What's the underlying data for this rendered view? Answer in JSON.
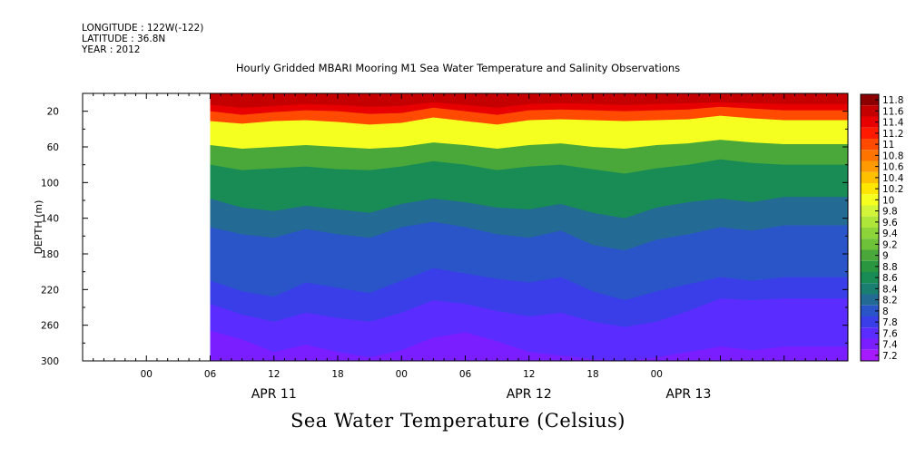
{
  "header": {
    "longitude": "LONGITUDE : 122W(-122)",
    "latitude": "LATITUDE : 36.8N",
    "year": "YEAR : 2012"
  },
  "chart_data": {
    "type": "heatmap",
    "title": "Hourly Gridded MBARI Mooring M1 Sea Water Temperature and Salinity Observations",
    "caption": "Sea Water Temperature (Celsius)",
    "ylabel": "DEPTH (m)",
    "ylim": [
      0,
      300
    ],
    "y_ticks": [
      20,
      60,
      100,
      140,
      180,
      220,
      260,
      300
    ],
    "x_hours_range": [
      -6,
      66
    ],
    "data_start_hour": 6,
    "x_ticks": [
      {
        "hour": 0,
        "label": "00"
      },
      {
        "hour": 6,
        "label": "06"
      },
      {
        "hour": 12,
        "label": "12"
      },
      {
        "hour": 18,
        "label": "18"
      },
      {
        "hour": 24,
        "label": "00"
      },
      {
        "hour": 30,
        "label": "06"
      },
      {
        "hour": 36,
        "label": "12"
      },
      {
        "hour": 42,
        "label": "18"
      },
      {
        "hour": 48,
        "label": "00"
      }
    ],
    "date_labels": [
      {
        "hour": 12,
        "label": "APR 11"
      },
      {
        "hour": 36,
        "label": "APR 12"
      },
      {
        "hour": 51,
        "label": "APR 13"
      }
    ],
    "colorbar": {
      "levels": [
        "11.8",
        "11.6",
        "11.4",
        "11.2",
        "11",
        "10.8",
        "10.6",
        "10.4",
        "10.2",
        "10",
        "9.8",
        "9.6",
        "9.4",
        "9.2",
        "9",
        "8.8",
        "8.6",
        "8.4",
        "8.2",
        "8",
        "7.8",
        "7.6",
        "7.4",
        "7.2"
      ],
      "colors": [
        "#8b0000",
        "#c40000",
        "#e80000",
        "#ff1a00",
        "#ff4a00",
        "#ff7300",
        "#ff9a00",
        "#ffc000",
        "#ffe600",
        "#f5ff20",
        "#d2f53a",
        "#aee63a",
        "#8cd43a",
        "#6ec23a",
        "#4aa83a",
        "#2a9640",
        "#198c55",
        "#1a7e70",
        "#236a94",
        "#2a55c8",
        "#3a3ee8",
        "#5a2cff",
        "#7b1eff",
        "#a51aff"
      ]
    },
    "isotherms": [
      {
        "value": 11.4,
        "hours": [
          6,
          9,
          12,
          15,
          18,
          21,
          24,
          27,
          30,
          33,
          36,
          39,
          42,
          45,
          48,
          51,
          54,
          57,
          60
        ],
        "depths": [
          13,
          16,
          14,
          12,
          13,
          15,
          14,
          10,
          13,
          16,
          12,
          11,
          12,
          13,
          12,
          11,
          10,
          11,
          12
        ]
      },
      {
        "value": 11.0,
        "hours": [
          6,
          9,
          12,
          15,
          18,
          21,
          24,
          27,
          30,
          33,
          36,
          39,
          42,
          45,
          48,
          51,
          54,
          57,
          60
        ],
        "depths": [
          20,
          24,
          21,
          19,
          20,
          23,
          22,
          16,
          20,
          24,
          19,
          18,
          19,
          20,
          19,
          18,
          15,
          17,
          19
        ]
      },
      {
        "value": 10.0,
        "hours": [
          6,
          9,
          12,
          15,
          18,
          21,
          24,
          27,
          30,
          33,
          36,
          39,
          42,
          45,
          48,
          51,
          54,
          57,
          60
        ],
        "depths": [
          31,
          34,
          31,
          30,
          32,
          35,
          33,
          27,
          31,
          35,
          30,
          29,
          30,
          31,
          30,
          29,
          25,
          28,
          30
        ]
      },
      {
        "value": 9.0,
        "hours": [
          6,
          9,
          12,
          15,
          18,
          21,
          24,
          27,
          30,
          33,
          36,
          39,
          42,
          45,
          48,
          51,
          54,
          57,
          60
        ],
        "depths": [
          58,
          62,
          60,
          58,
          60,
          62,
          60,
          55,
          58,
          62,
          58,
          56,
          60,
          62,
          58,
          56,
          52,
          55,
          57
        ]
      },
      {
        "value": 8.6,
        "hours": [
          6,
          9,
          12,
          15,
          18,
          21,
          24,
          27,
          30,
          33,
          36,
          39,
          42,
          45,
          48,
          51,
          54,
          57,
          60
        ],
        "depths": [
          80,
          86,
          84,
          82,
          85,
          86,
          82,
          76,
          80,
          86,
          82,
          80,
          85,
          90,
          84,
          80,
          74,
          78,
          80
        ]
      },
      {
        "value": 8.2,
        "hours": [
          6,
          9,
          12,
          15,
          18,
          21,
          24,
          27,
          30,
          33,
          36,
          39,
          42,
          45,
          48,
          51,
          54,
          57,
          60
        ],
        "depths": [
          118,
          128,
          132,
          126,
          130,
          134,
          124,
          118,
          122,
          128,
          130,
          124,
          134,
          140,
          128,
          122,
          118,
          122,
          116
        ]
      },
      {
        "value": 8.0,
        "hours": [
          6,
          9,
          12,
          15,
          18,
          21,
          24,
          27,
          30,
          33,
          36,
          39,
          42,
          45,
          48,
          51,
          54,
          57,
          60
        ],
        "depths": [
          150,
          158,
          162,
          152,
          158,
          162,
          150,
          144,
          150,
          158,
          162,
          154,
          170,
          176,
          164,
          158,
          150,
          154,
          148
        ]
      },
      {
        "value": 7.8,
        "hours": [
          6,
          9,
          12,
          15,
          18,
          21,
          24,
          27,
          30,
          33,
          36,
          39,
          42,
          45,
          48,
          51,
          54,
          57,
          60
        ],
        "depths": [
          210,
          222,
          228,
          212,
          218,
          224,
          210,
          196,
          202,
          208,
          212,
          206,
          222,
          232,
          222,
          214,
          206,
          210,
          206
        ]
      },
      {
        "value": 7.6,
        "hours": [
          6,
          9,
          12,
          15,
          18,
          21,
          24,
          27,
          30,
          33,
          36,
          39,
          42,
          45,
          48,
          51,
          54,
          57,
          60
        ],
        "depths": [
          236,
          248,
          256,
          246,
          252,
          256,
          246,
          232,
          236,
          244,
          250,
          246,
          256,
          262,
          256,
          244,
          230,
          232,
          230
        ]
      },
      {
        "value": 7.4,
        "hours": [
          6,
          9,
          12,
          15,
          18,
          21,
          24,
          27,
          30,
          33,
          36,
          39,
          42,
          45,
          48,
          51,
          54,
          57,
          60
        ],
        "depths": [
          266,
          276,
          290,
          282,
          290,
          296,
          288,
          274,
          268,
          278,
          290,
          294,
          298,
          300,
          296,
          290,
          284,
          288,
          284
        ]
      },
      {
        "value": 7.2,
        "hours": [
          6,
          9,
          12,
          15,
          18,
          21,
          24,
          27,
          30,
          33,
          36,
          39,
          42,
          45,
          48,
          51,
          54,
          57,
          60
        ],
        "depths": [
          300,
          300,
          300,
          300,
          300,
          300,
          300,
          300,
          300,
          300,
          300,
          300,
          300,
          300,
          300,
          300,
          300,
          300,
          300
        ]
      }
    ]
  }
}
